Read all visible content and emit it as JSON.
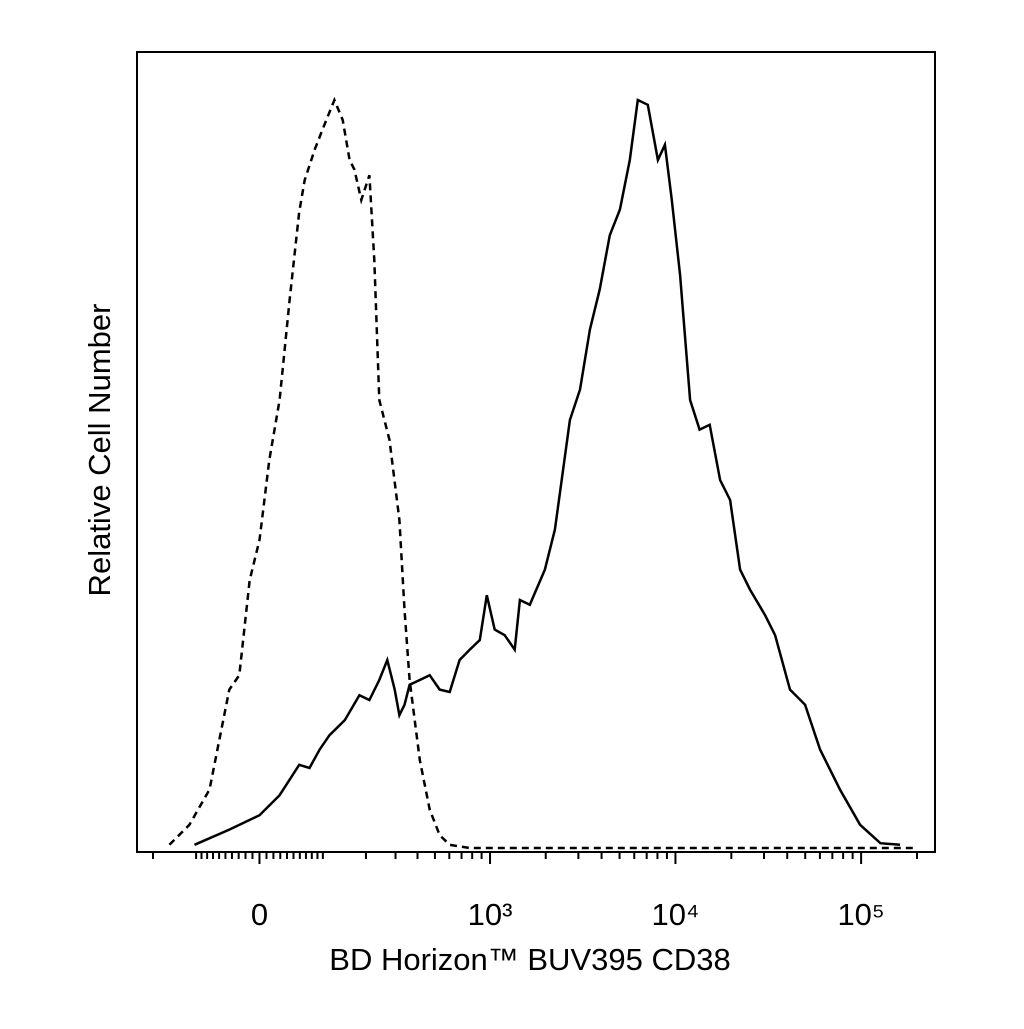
{
  "chart_data": {
    "type": "line",
    "xlabel": "BD Horizon™ BUV395 CD38",
    "ylabel": "Relative Cell Number",
    "xscale": "biexponential",
    "xlim": [
      -250,
      250000
    ],
    "ylim": [
      0,
      100
    ],
    "xticks": [
      {
        "value": 0,
        "label": "0"
      },
      {
        "value": 1000,
        "label": "10³"
      },
      {
        "value": 10000,
        "label": "10⁴"
      },
      {
        "value": 100000,
        "label": "10⁵"
      }
    ],
    "xminorticks": [
      -200,
      -100,
      -90,
      -80,
      -70,
      -60,
      -50,
      -40,
      -30,
      -20,
      -10,
      10,
      20,
      30,
      40,
      50,
      60,
      70,
      80,
      90,
      100,
      200,
      300,
      400,
      500,
      600,
      700,
      800,
      900,
      2000,
      3000,
      4000,
      5000,
      6000,
      7000,
      8000,
      9000,
      20000,
      30000,
      40000,
      50000,
      60000,
      70000,
      80000,
      90000,
      200000
    ],
    "series": [
      {
        "color": "#000000",
        "dash": true,
        "x": [
          -157,
          -113,
          -76,
          -44,
          -29,
          -14,
          0,
          14,
          29,
          44,
          59,
          68,
          85,
          103,
          123,
          141,
          157,
          169,
          187,
          210,
          225,
          241,
          277,
          316,
          338,
          361,
          412,
          468,
          531,
          603,
          776,
          200000
        ],
        "values": [
          0.9,
          3.4,
          7.8,
          20.3,
          22.1,
          34,
          39,
          49,
          56.5,
          69,
          80,
          84,
          87.8,
          90.9,
          94,
          91.5,
          86.5,
          85.3,
          81.5,
          84.6,
          74,
          56.5,
          51.5,
          41.5,
          30.3,
          21.5,
          11.5,
          5.3,
          2.1,
          0.9,
          0.5,
          0.5
        ]
      },
      {
        "color": "#000000",
        "dash": false,
        "x": [
          -103,
          -44,
          0,
          29,
          59,
          76,
          94,
          113,
          146,
          182,
          210,
          241,
          269,
          297,
          316,
          338,
          361,
          412,
          468,
          531,
          603,
          683,
          776,
          880,
          960,
          1060,
          1200,
          1360,
          1450,
          1640,
          1980,
          2240,
          2700,
          3060,
          3460,
          3910,
          4430,
          5020,
          5680,
          6270,
          7100,
          8040,
          8770,
          9560,
          10600,
          12000,
          13500,
          15300,
          17400,
          19700,
          22300,
          25200,
          30400,
          34400,
          41400,
          49900,
          60100,
          77000,
          98800,
          127000,
          162000
        ],
        "values": [
          0.9,
          2.8,
          4.6,
          7.1,
          10.9,
          10.5,
          12.8,
          14.6,
          16.5,
          19.6,
          19,
          21.5,
          24,
          20.3,
          17.1,
          18.4,
          20.9,
          21.5,
          22.1,
          20.3,
          20,
          24,
          25.3,
          26.5,
          32.1,
          27.8,
          27.1,
          25.3,
          31.5,
          30.9,
          35.3,
          40.3,
          54,
          57.8,
          65.3,
          70.3,
          77.1,
          80.3,
          86.5,
          94,
          93.4,
          86.5,
          88.4,
          81.5,
          72.1,
          56.5,
          52.8,
          53.4,
          46.5,
          44,
          35.3,
          32.8,
          29.6,
          27.1,
          20.3,
          18.4,
          12.8,
          7.8,
          3.4,
          1.1,
          0.9
        ]
      }
    ]
  }
}
